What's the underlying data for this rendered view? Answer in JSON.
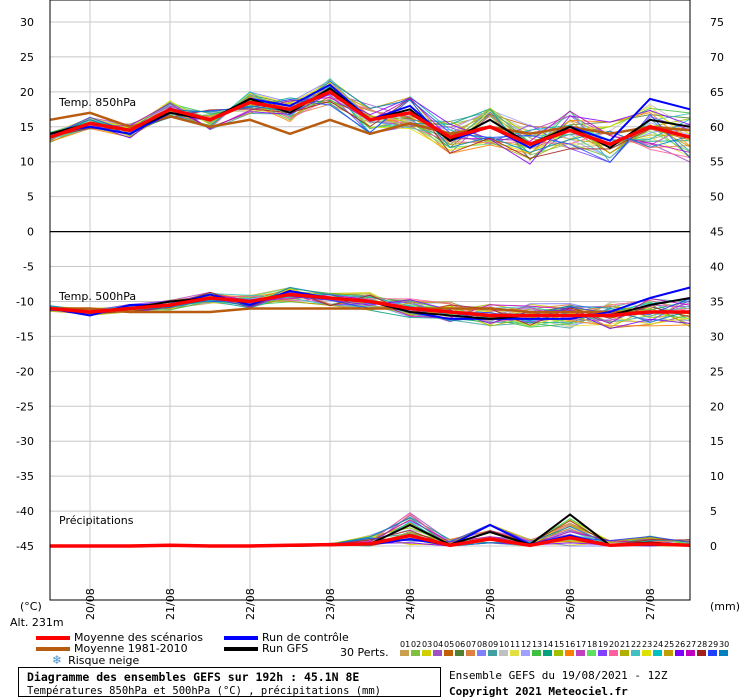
{
  "chart_data": {
    "type": "line",
    "title": "Diagramme des ensembles GEFS sur 192h : 45.1N 8E",
    "subtitle": "Températures 850hPa et 500hPa (°C) , précipitations (mm)",
    "left_unit": "(°C)",
    "right_unit": "(mm)",
    "altitude": "Alt. 231m",
    "left_ticks": [
      "30",
      "25",
      "20",
      "15",
      "10",
      "5",
      "0",
      "-5",
      "-10",
      "-15",
      "-20",
      "-25",
      "-30",
      "-35",
      "-40",
      "-45"
    ],
    "right_ticks_850": [
      "75",
      "70",
      "65",
      "60",
      "55",
      "50",
      "45"
    ],
    "right_ticks_500": [
      "40",
      "35",
      "30",
      "25",
      "20",
      "15"
    ],
    "right_ticks_precip": [
      "10",
      "5",
      "0"
    ],
    "dates": [
      "20/08",
      "21/08",
      "22/08",
      "23/08",
      "24/08",
      "25/08",
      "26/08",
      "27/08"
    ],
    "panels": [
      {
        "label": "Temp. 850hPa",
        "ylim": [
          0,
          30
        ]
      },
      {
        "label": "Temp. 500hPa",
        "ylim": [
          -20,
          0
        ]
      },
      {
        "label": "Précipitations",
        "ylim": [
          0,
          12
        ],
        "unit": "mm"
      }
    ],
    "x_hours": [
      0,
      12,
      24,
      36,
      48,
      60,
      72,
      84,
      96,
      108,
      120,
      132,
      144,
      156,
      168,
      180,
      192
    ],
    "series": [
      {
        "name": "Moyenne des scénarios",
        "color": "#ff0000",
        "t850": [
          13.5,
          15.5,
          14.5,
          17.5,
          16,
          18.5,
          17.5,
          20,
          16,
          17,
          13.5,
          15,
          12.5,
          14.5,
          12.5,
          15,
          13.5
        ],
        "t500": [
          -11,
          -11.5,
          -11,
          -10.5,
          -9.5,
          -10,
          -9,
          -9.5,
          -10,
          -11,
          -11.5,
          -12,
          -12,
          -12,
          -12,
          -11.5,
          -11.5
        ],
        "precip": [
          0,
          0,
          0,
          0.1,
          0,
          0,
          0.1,
          0.2,
          0.3,
          1.5,
          0.1,
          1.0,
          0.1,
          1.2,
          0.1,
          0.3,
          0.1
        ]
      },
      {
        "name": "Moyenne 1981-2010",
        "color": "#b85c10",
        "t850": [
          16,
          17,
          15,
          16.5,
          15,
          16,
          14,
          16,
          14,
          15.5,
          14,
          15,
          14,
          15,
          14,
          15,
          14.5
        ],
        "t500": [
          -11,
          -11,
          -11.5,
          -11.5,
          -11.5,
          -11,
          -11,
          -11,
          -11,
          -11,
          -11,
          -11,
          -11.5,
          -11.5,
          -11.5,
          -11.5,
          -11.5
        ],
        "precip": null
      },
      {
        "name": "Run de contrôle",
        "color": "#0000ff",
        "t850": [
          14,
          15,
          14,
          17,
          16,
          19,
          18,
          21,
          16,
          18,
          13,
          15,
          12,
          15,
          13,
          19,
          17.5
        ],
        "t500": [
          -11,
          -12,
          -10.5,
          -10.5,
          -9,
          -10.5,
          -8.5,
          -9.5,
          -10,
          -11.5,
          -12.5,
          -12.5,
          -12.5,
          -12.5,
          -11.5,
          -9.5,
          -8
        ],
        "precip": [
          0,
          0,
          0,
          0,
          0,
          0,
          0,
          0.3,
          0.2,
          1.0,
          0.1,
          3.0,
          0.2,
          1.5,
          0.1,
          0.2,
          0.1
        ]
      },
      {
        "name": "Run GFS",
        "color": "#000000",
        "t850": [
          14,
          15.5,
          14.5,
          17,
          16,
          19,
          17,
          20.5,
          16,
          17.5,
          13,
          16,
          12.5,
          15,
          12,
          16,
          15
        ],
        "t500": [
          -11,
          -11.5,
          -11,
          -10,
          -9.5,
          -10,
          -9,
          -9.5,
          -10,
          -11.5,
          -12,
          -12.5,
          -12,
          -12,
          -12,
          -10.5,
          -9.5
        ],
        "precip": [
          0,
          0,
          0,
          0,
          0,
          0,
          0,
          0.1,
          0.3,
          3.0,
          0.2,
          2.0,
          0.2,
          4.5,
          0.1,
          0.5,
          0.1
        ]
      }
    ]
  },
  "legend": {
    "mean": "Moyenne des scénarios",
    "clim": "Moyenne 1981-2010",
    "snow": "Risque neige",
    "control": "Run de contrôle",
    "gfs": "Run GFS",
    "perts": "30 Perts.",
    "pert_numbers": [
      "01",
      "02",
      "03",
      "04",
      "05",
      "06",
      "07",
      "08",
      "09",
      "10",
      "11",
      "12",
      "13",
      "14",
      "15",
      "16",
      "17",
      "18",
      "19",
      "20",
      "21",
      "22",
      "23",
      "24",
      "25",
      "26",
      "27",
      "28",
      "29",
      "30"
    ],
    "pert_colors": [
      "#c8a050",
      "#80c040",
      "#d0d000",
      "#a050c0",
      "#c06000",
      "#508030",
      "#e08040",
      "#8080ff",
      "#40a0a0",
      "#c0c0c0",
      "#e0e040",
      "#a0a0ff",
      "#40c040",
      "#00a080",
      "#a0c000",
      "#ff8000",
      "#c040c0",
      "#60e060",
      "#8040ff",
      "#ff60a0",
      "#b0b000",
      "#40c0c0",
      "#e0e000",
      "#00c0c0",
      "#c0a000",
      "#8000ff",
      "#c000c0",
      "#a02020",
      "#2040ff",
      "#0080c0"
    ]
  },
  "footer": {
    "title": "Diagramme des ensembles GEFS sur 192h : 45.1N 8E",
    "subtitle": "Températures 850hPa et 500hPa (°C) , précipitations (mm)",
    "run": "Ensemble GEFS du 19/08/2021 - 12Z",
    "copyright": "Copyright 2021 Meteociel.fr"
  }
}
